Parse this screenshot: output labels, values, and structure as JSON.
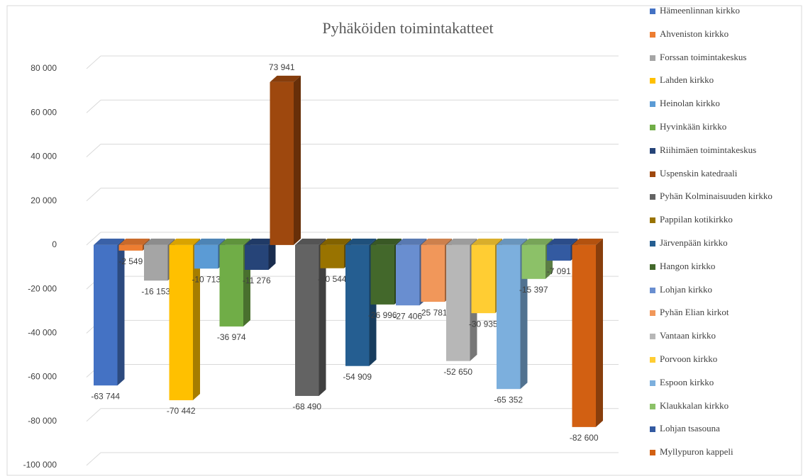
{
  "chart_data": {
    "type": "bar3d",
    "title": "Pyhäköiden toimintakatteet",
    "ylim": [
      -100000,
      80000
    ],
    "yticks": [
      {
        "value": -100000,
        "label": "-100 000"
      },
      {
        "value": -80000,
        "label": "-80 000"
      },
      {
        "value": -60000,
        "label": "-60 000"
      },
      {
        "value": -40000,
        "label": "-40 000"
      },
      {
        "value": -20000,
        "label": "-20 000"
      },
      0,
      {
        "value": 20000,
        "label": "20 000"
      },
      {
        "value": 40000,
        "label": "40 000"
      },
      {
        "value": 60000,
        "label": "60 000"
      },
      {
        "value": 80000,
        "label": "80 000"
      }
    ],
    "grid": true,
    "legend": "right",
    "series": [
      {
        "name": "Hämeenlinnan kirkko",
        "color": "#4472c4",
        "values": [
          -63744
        ],
        "value_labels": [
          "-63 744"
        ]
      },
      {
        "name": "Ahveniston kirkko",
        "color": "#ed7d31",
        "values": [
          -2549
        ],
        "value_labels": [
          "-2 549"
        ]
      },
      {
        "name": "Forssan toimintakeskus",
        "color": "#a5a5a5",
        "values": [
          -16153
        ],
        "value_labels": [
          "-16 153"
        ]
      },
      {
        "name": "Lahden kirkko",
        "color": "#ffc000",
        "values": [
          -70442
        ],
        "value_labels": [
          "-70 442"
        ]
      },
      {
        "name": "Heinolan kirkko",
        "color": "#5b9bd5",
        "values": [
          -10713
        ],
        "value_labels": [
          "-10 713"
        ]
      },
      {
        "name": "Hyvinkään kirkko",
        "color": "#70ad47",
        "values": [
          -36974
        ],
        "value_labels": [
          "-36 974"
        ]
      },
      {
        "name": "Riihimäen toimintakeskus",
        "color": "#264478",
        "values": [
          -11276
        ],
        "value_labels": [
          "-11 276"
        ]
      },
      {
        "name": "Uspenskin katedraali",
        "color": "#9e480e",
        "values": [
          73941
        ],
        "value_labels": [
          "73 941"
        ]
      },
      {
        "name": "Pyhän Kolminaisuuden kirkko",
        "color": "#636363",
        "values": [
          -68490
        ],
        "value_labels": [
          "-68 490"
        ]
      },
      {
        "name": "Pappilan kotikirkko",
        "color": "#997300",
        "values": [
          -10544
        ],
        "value_labels": [
          "-10 544"
        ]
      },
      {
        "name": "Järvenpään kirkko",
        "color": "#255e91",
        "values": [
          -54909
        ],
        "value_labels": [
          "-54 909"
        ]
      },
      {
        "name": "Hangon kirkko",
        "color": "#43682b",
        "values": [
          -26996
        ],
        "value_labels": [
          "-26 996"
        ]
      },
      {
        "name": "Lohjan kirkko",
        "color": "#698ed0",
        "values": [
          -27406
        ],
        "value_labels": [
          "-27 406"
        ]
      },
      {
        "name": "Pyhän Elian kirkot",
        "color": "#f1975a",
        "values": [
          -25781
        ],
        "value_labels": [
          "-25 781"
        ]
      },
      {
        "name": "Vantaan kirkko",
        "color": "#b7b7b7",
        "values": [
          -52650
        ],
        "value_labels": [
          "-52 650"
        ]
      },
      {
        "name": "Porvoon kirkko",
        "color": "#ffcd33",
        "values": [
          -30935
        ],
        "value_labels": [
          "-30 935"
        ]
      },
      {
        "name": "Espoon kirkko",
        "color": "#7cafdd",
        "values": [
          -65352
        ],
        "value_labels": [
          "-65 352"
        ]
      },
      {
        "name": "Klaukkalan kirkko",
        "color": "#8cc168",
        "values": [
          -15397
        ],
        "value_labels": [
          "-15 397"
        ]
      },
      {
        "name": "Lohjan tsasouna",
        "color": "#335aa1",
        "values": [
          -7091
        ],
        "value_labels": [
          "-7 091"
        ]
      },
      {
        "name": "Myllypuron kappeli",
        "color": "#d26012",
        "values": [
          -82600
        ],
        "value_labels": [
          "-82 600"
        ]
      }
    ]
  }
}
